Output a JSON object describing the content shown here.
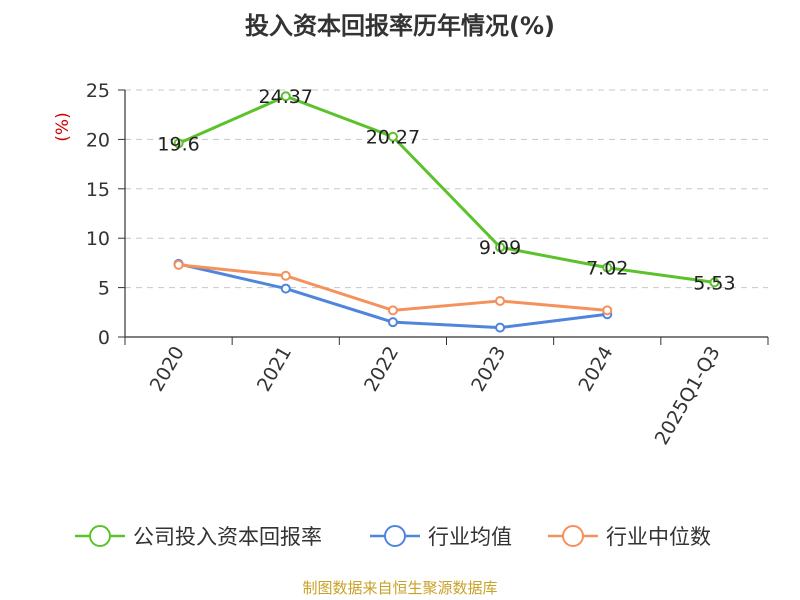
{
  "chart_data": {
    "type": "line",
    "title": "投入资本回报率历年情况(%)",
    "ylabel": "(%)",
    "xlabel": "",
    "categories": [
      "2020",
      "2021",
      "2022",
      "2023",
      "2024",
      "2025Q1-Q3"
    ],
    "ylim": [
      0,
      25
    ],
    "yticks": [
      0,
      5,
      10,
      15,
      20,
      25
    ],
    "grid": true,
    "legend_position": "bottom",
    "series": [
      {
        "name": "公司投入资本回报率",
        "color": "#5cc22b",
        "values": [
          19.6,
          24.37,
          20.27,
          9.09,
          7.02,
          5.53
        ],
        "labels": [
          "19.6",
          "24.37",
          "20.27",
          "9.09",
          "7.02",
          "5.53"
        ]
      },
      {
        "name": "行业均值",
        "color": "#4f86dc",
        "values": [
          7.4,
          4.9,
          1.5,
          0.95,
          2.3,
          null
        ]
      },
      {
        "name": "行业中位数",
        "color": "#f5915c",
        "values": [
          7.3,
          6.2,
          2.7,
          3.65,
          2.7,
          null
        ]
      }
    ]
  },
  "source": "制图数据来自恒生聚源数据库"
}
